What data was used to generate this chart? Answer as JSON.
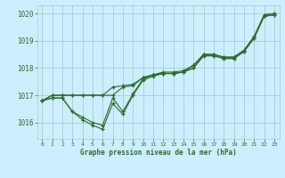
{
  "xlabel": "Graphe pression niveau de la mer (hPa)",
  "hours": [
    0,
    1,
    2,
    3,
    4,
    5,
    6,
    7,
    8,
    9,
    10,
    11,
    12,
    13,
    14,
    15,
    16,
    17,
    18,
    19,
    20,
    21,
    22,
    23
  ],
  "series1": [
    1016.8,
    1016.9,
    1016.9,
    1016.4,
    1016.1,
    1015.9,
    1015.75,
    1016.7,
    1016.3,
    1017.0,
    1017.55,
    1017.7,
    1017.8,
    1017.8,
    1017.85,
    1018.0,
    1018.45,
    1018.45,
    1018.35,
    1018.35,
    1018.6,
    1019.1,
    1019.9,
    1019.95
  ],
  "series2": [
    1016.8,
    1016.9,
    1016.9,
    1016.4,
    1016.2,
    1016.0,
    1015.9,
    1016.9,
    1016.4,
    1017.05,
    1017.6,
    1017.75,
    1017.85,
    1017.85,
    1017.9,
    1018.1,
    1018.5,
    1018.5,
    1018.4,
    1018.4,
    1018.65,
    1019.15,
    1019.95,
    1020.0
  ],
  "series3": [
    1016.8,
    1017.0,
    1017.0,
    1017.0,
    1017.0,
    1017.0,
    1017.0,
    1017.0,
    1017.3,
    1017.35,
    1017.65,
    1017.75,
    1017.8,
    1017.8,
    1017.85,
    1018.0,
    1018.45,
    1018.45,
    1018.35,
    1018.35,
    1018.6,
    1019.1,
    1019.9,
    1019.95
  ],
  "series4": [
    1016.8,
    1017.0,
    1017.0,
    1017.0,
    1017.0,
    1017.0,
    1017.0,
    1017.3,
    1017.35,
    1017.4,
    1017.65,
    1017.75,
    1017.8,
    1017.8,
    1017.85,
    1018.1,
    1018.5,
    1018.5,
    1018.4,
    1018.4,
    1018.65,
    1019.15,
    1019.95,
    1020.0
  ],
  "line_color": "#2d6a2d",
  "bg_color": "#cceeff",
  "grid_color": "#aacccc",
  "text_color": "#2d6a2d",
  "ylim_min": 1015.4,
  "ylim_max": 1020.3,
  "yticks": [
    1016,
    1017,
    1018,
    1019,
    1020
  ],
  "xlim_min": -0.5,
  "xlim_max": 23.5
}
